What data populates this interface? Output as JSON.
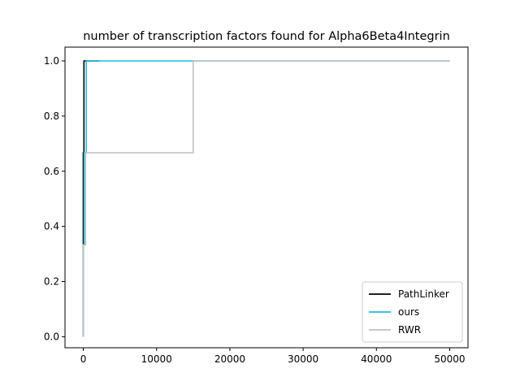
{
  "chart_data": {
    "type": "line",
    "title": "number of transcription factors found for Alpha6Beta4Integrin",
    "xlabel": "",
    "ylabel": "",
    "xlim": [
      -2500,
      52500
    ],
    "ylim": [
      -0.04,
      1.05
    ],
    "x_ticks": [
      0,
      10000,
      20000,
      30000,
      40000,
      50000
    ],
    "x_tick_labels": [
      "0",
      "10000",
      "20000",
      "30000",
      "40000",
      "50000"
    ],
    "y_ticks": [
      0.0,
      0.2,
      0.4,
      0.6,
      0.8,
      1.0
    ],
    "y_tick_labels": [
      "0.0",
      "0.2",
      "0.4",
      "0.6",
      "0.8",
      "1.0"
    ],
    "grid": false,
    "legend_position": "lower-right",
    "series": [
      {
        "name": "PathLinker",
        "color": "#000000",
        "points": [
          [
            0,
            0
          ],
          [
            0,
            0.667
          ],
          [
            80,
            0.667
          ],
          [
            80,
            1.0
          ],
          [
            2200,
            1.0
          ]
        ]
      },
      {
        "name": "ours",
        "color": "#1fbfe0",
        "points": [
          [
            0,
            0
          ],
          [
            0,
            0.333
          ],
          [
            120,
            0.333
          ],
          [
            120,
            0.667
          ],
          [
            400,
            0.667
          ],
          [
            400,
            1.0
          ],
          [
            50000,
            1.0
          ]
        ]
      },
      {
        "name": "RWR",
        "color": "#c0c0c0",
        "points": [
          [
            0,
            0
          ],
          [
            0,
            0.333
          ],
          [
            300,
            0.333
          ],
          [
            300,
            0.667
          ],
          [
            15000,
            0.667
          ],
          [
            15000,
            1.0
          ],
          [
            50000,
            1.0
          ]
        ]
      }
    ]
  }
}
